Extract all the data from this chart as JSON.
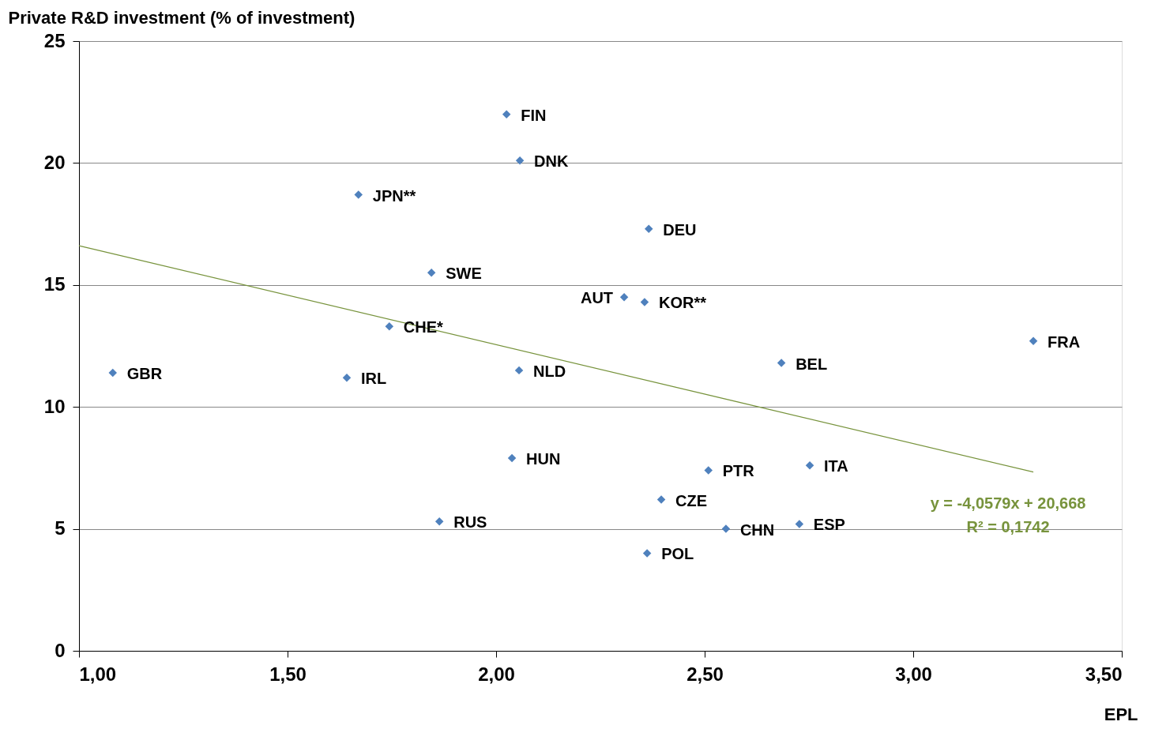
{
  "chart_data": {
    "type": "scatter",
    "ylabel": "Private R&D investment (% of investment)",
    "xlabel": "EPL",
    "xlim": [
      1.0,
      3.5
    ],
    "xticks": [
      {
        "value": 1.0,
        "label": "1,00"
      },
      {
        "value": 1.5,
        "label": "1,50"
      },
      {
        "value": 2.0,
        "label": "2,00"
      },
      {
        "value": 2.5,
        "label": "2,50"
      },
      {
        "value": 3.0,
        "label": "3,00"
      },
      {
        "value": 3.5,
        "label": "3,50"
      }
    ],
    "ylim": [
      0,
      25
    ],
    "yticks": [
      0,
      5,
      10,
      15,
      20,
      25
    ],
    "grid": "y",
    "series": [
      {
        "color": "#4f81bd",
        "marker": "diamond",
        "x": [
          2.025,
          2.057,
          1.67,
          2.366,
          1.845,
          2.307,
          2.356,
          1.744,
          3.288,
          2.684,
          1.081,
          1.642,
          2.055,
          2.038,
          2.509,
          2.752,
          2.396,
          1.864,
          2.551,
          2.727,
          2.362
        ],
        "values": [
          22.0,
          20.1,
          18.7,
          17.3,
          15.5,
          14.5,
          14.3,
          13.3,
          12.7,
          11.8,
          11.4,
          11.2,
          11.5,
          7.9,
          7.4,
          7.6,
          6.2,
          5.3,
          5.0,
          5.2,
          4.0
        ]
      },
      {
        "type": "line",
        "color": "#77933c",
        "marker": "none",
        "line_style": "solid",
        "x": [
          1.0,
          3.288
        ],
        "values": [
          16.61,
          7.33
        ]
      }
    ],
    "annotations": [
      {
        "text": "FIN",
        "x": 2.025,
        "y": 22.0
      },
      {
        "text": "DNK",
        "x": 2.057,
        "y": 20.1
      },
      {
        "text": "JPN**",
        "x": 1.67,
        "y": 18.7
      },
      {
        "text": "DEU",
        "x": 2.366,
        "y": 17.3
      },
      {
        "text": "SWE",
        "x": 1.845,
        "y": 15.5
      },
      {
        "text": "AUT",
        "x": 2.307,
        "y": 14.5
      },
      {
        "text": "KOR**",
        "x": 2.356,
        "y": 14.3
      },
      {
        "text": "CHE*",
        "x": 1.744,
        "y": 13.3
      },
      {
        "text": "FRA",
        "x": 3.288,
        "y": 12.7
      },
      {
        "text": "BEL",
        "x": 2.684,
        "y": 11.8
      },
      {
        "text": "GBR",
        "x": 1.081,
        "y": 11.4
      },
      {
        "text": "IRL",
        "x": 1.642,
        "y": 11.2
      },
      {
        "text": "NLD",
        "x": 2.055,
        "y": 11.5
      },
      {
        "text": "HUN",
        "x": 2.038,
        "y": 7.9
      },
      {
        "text": "PTR",
        "x": 2.509,
        "y": 7.4
      },
      {
        "text": "ITA",
        "x": 2.752,
        "y": 7.6
      },
      {
        "text": "CZE",
        "x": 2.396,
        "y": 6.2
      },
      {
        "text": "RUS",
        "x": 1.864,
        "y": 5.3
      },
      {
        "text": "CHN",
        "x": 2.551,
        "y": 5.0
      },
      {
        "text": "ESP",
        "x": 2.727,
        "y": 5.2
      },
      {
        "text": "POL",
        "x": 2.362,
        "y": 4.0
      },
      "y = -4,0579x + 20,668",
      "R² = 0,1742"
    ]
  }
}
